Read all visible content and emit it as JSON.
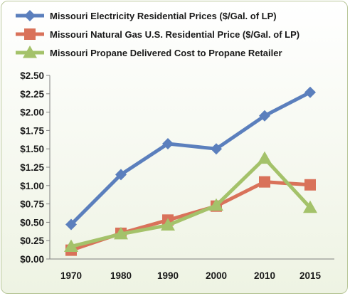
{
  "chart_data": {
    "type": "line",
    "categories": [
      "1970",
      "1980",
      "1990",
      "2000",
      "2010",
      "2015"
    ],
    "yticks": [
      "$0.00",
      "$0.25",
      "$0.50",
      "$0.75",
      "$1.00",
      "$1.25",
      "$1.50",
      "$1.75",
      "$2.00",
      "$2.25",
      "$2.50"
    ],
    "ylim": [
      0,
      2.5
    ],
    "grid": false,
    "legend_position": "top",
    "series": [
      {
        "name": "Missouri Electricity Residential Prices ($/Gal. of LP)",
        "color": "#5b7fbd",
        "marker": "diamond",
        "values": [
          0.47,
          1.15,
          1.57,
          1.5,
          1.95,
          2.27
        ]
      },
      {
        "name": "Missouri Natural Gas U.S. Residential Price ($/Gal. of LP)",
        "color": "#d9725a",
        "marker": "square",
        "values": [
          0.12,
          0.35,
          0.53,
          0.72,
          1.05,
          1.01
        ]
      },
      {
        "name": "Missouri Propane Delivered Cost to Propane Retailer",
        "color": "#a4c26a",
        "marker": "triangle",
        "values": [
          0.17,
          0.34,
          0.46,
          0.73,
          1.37,
          0.7
        ]
      }
    ]
  }
}
